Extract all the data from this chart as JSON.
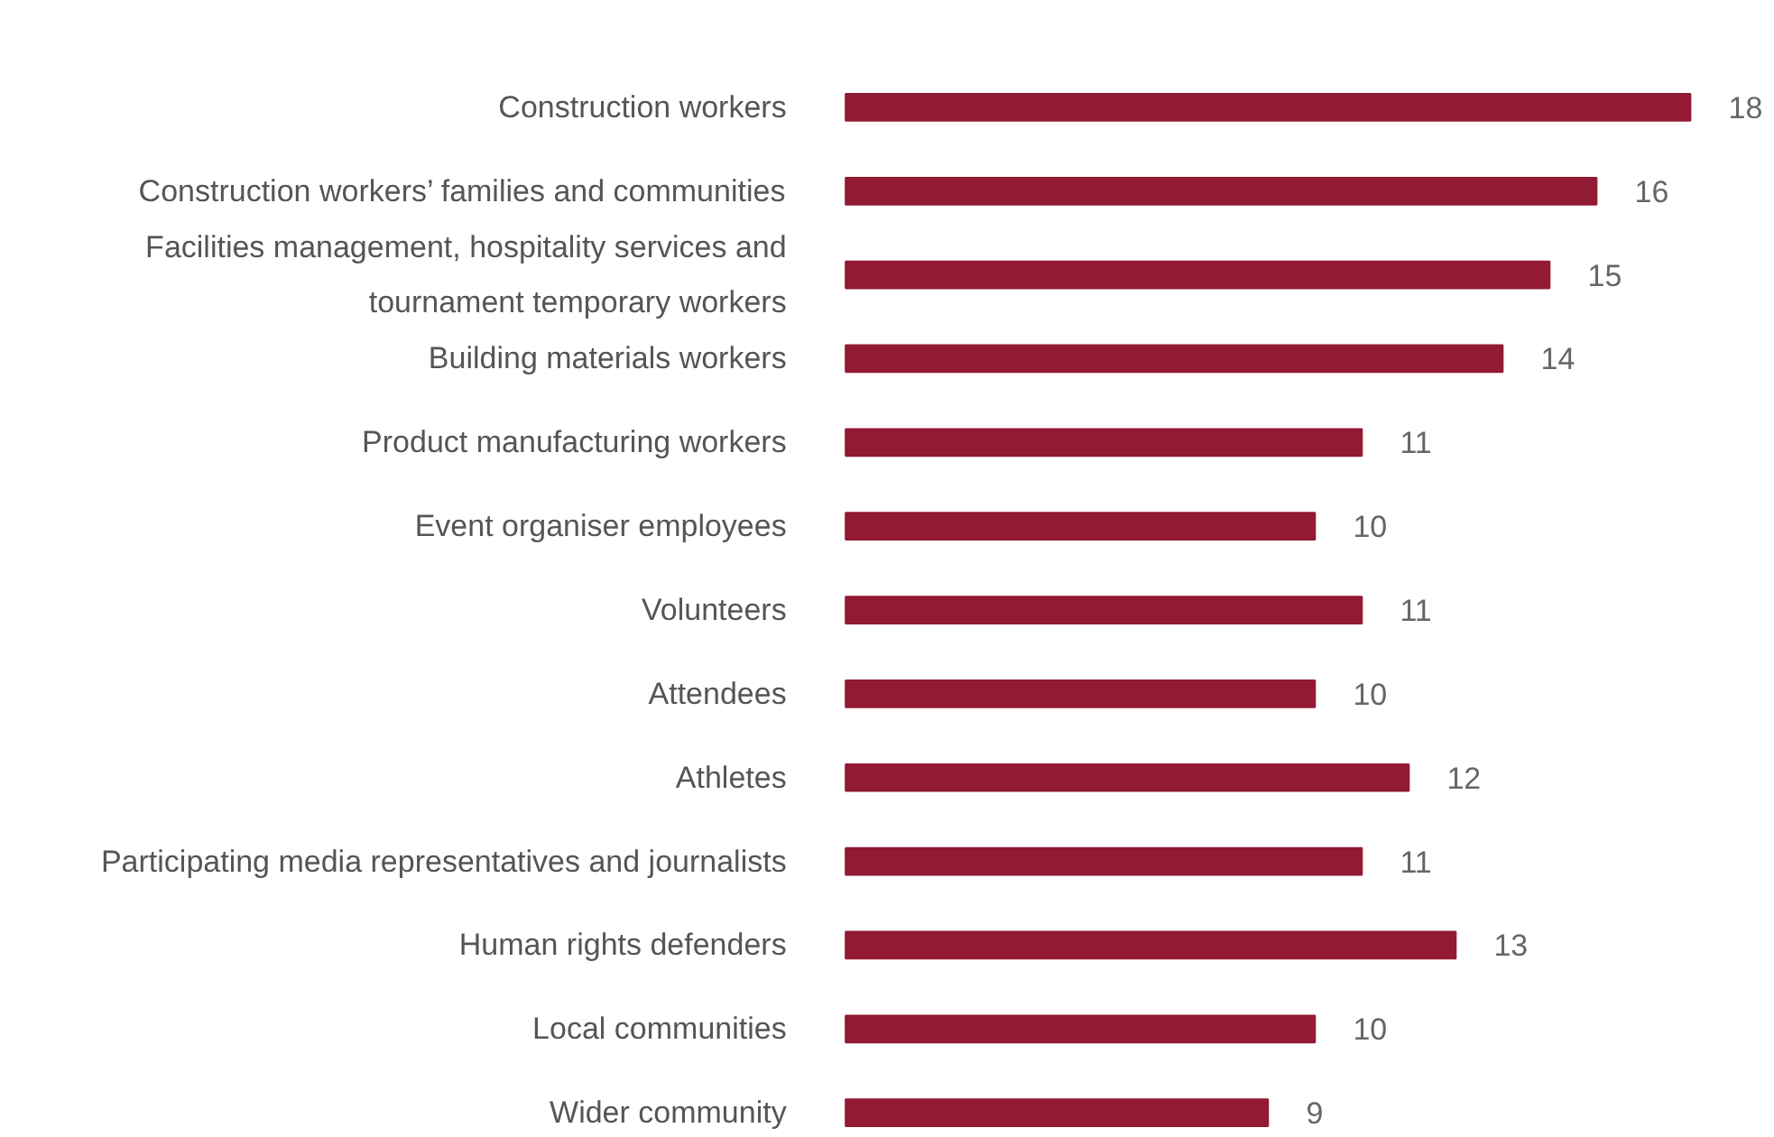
{
  "chart_data": {
    "type": "bar",
    "orientation": "horizontal",
    "data_labels": true,
    "color": "#921a32",
    "categories": [
      "Construction workers",
      "Construction workers’ families and communities",
      "Facilities management, hospitality services and tournament temporary workers",
      "Building materials workers",
      "Product manufacturing workers",
      "Event organiser employees",
      "Volunteers",
      "Attendees",
      "Athletes",
      "Participating media representatives and journalists",
      "Human rights defenders",
      "Local communities",
      "Wider community"
    ],
    "values": [
      18,
      16,
      15,
      14,
      11,
      10,
      11,
      10,
      12,
      11,
      13,
      10,
      9
    ]
  }
}
